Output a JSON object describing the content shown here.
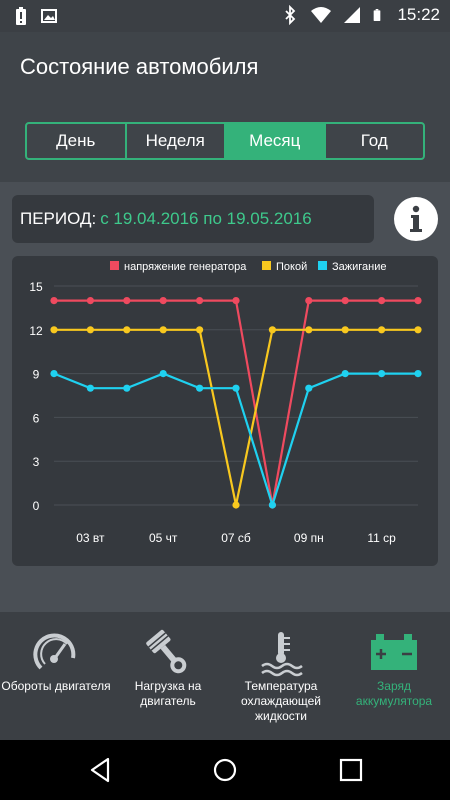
{
  "status_bar": {
    "time": "15:22",
    "left_icons": [
      "battery-alert-icon",
      "image-icon"
    ],
    "right_icons": [
      "bluetooth-icon",
      "wifi-icon",
      "signal-icon",
      "battery-icon"
    ]
  },
  "header": {
    "title": "Состояние автомобиля"
  },
  "tabs": [
    {
      "label": "День",
      "active": false
    },
    {
      "label": "Неделя",
      "active": false
    },
    {
      "label": "Месяц",
      "active": true
    },
    {
      "label": "Год",
      "active": false
    }
  ],
  "period": {
    "label": "ПЕРИОД:",
    "value": "с 19.04.2016 по 19.05.2016"
  },
  "info_icon": "info-icon",
  "chart_data": {
    "type": "line",
    "legend_position": "top-right",
    "grid": true,
    "ylim": [
      0,
      15
    ],
    "y_ticks": [
      0,
      3,
      6,
      9,
      12,
      15
    ],
    "x_tick_labels": [
      "03 вт",
      "05 чт",
      "07 сб",
      "09 пн",
      "11 ср"
    ],
    "x": [
      1,
      2,
      3,
      4,
      5,
      6,
      7,
      8,
      9,
      10,
      11
    ],
    "x_tick_positions": [
      2,
      4,
      6,
      8,
      10
    ],
    "series": [
      {
        "name": "напряжение генератора",
        "color": "#ef4a5f",
        "values": [
          14,
          14,
          14,
          14,
          14,
          14,
          0,
          14,
          14,
          14,
          14
        ]
      },
      {
        "name": "Покой",
        "color": "#f8c81f",
        "values": [
          12,
          12,
          12,
          12,
          12,
          0,
          12,
          12,
          12,
          12,
          12
        ]
      },
      {
        "name": "Зажигание",
        "color": "#1fd1f0",
        "values": [
          9,
          8,
          8,
          9,
          8,
          8,
          0,
          8,
          9,
          9,
          9
        ]
      }
    ]
  },
  "bottom_nav": [
    {
      "label": "Обороты двигателя",
      "icon": "speedometer-icon",
      "active": false
    },
    {
      "label": "Нагрузка на двигатель",
      "icon": "piston-icon",
      "active": false
    },
    {
      "label": "Температура охлаждающей жидкости",
      "icon": "coolant-temperature-icon",
      "active": false
    },
    {
      "label": "Заряд аккумулятора",
      "icon": "car-battery-icon",
      "active": true
    }
  ],
  "system_nav": [
    "back-icon",
    "home-icon",
    "recents-icon"
  ]
}
